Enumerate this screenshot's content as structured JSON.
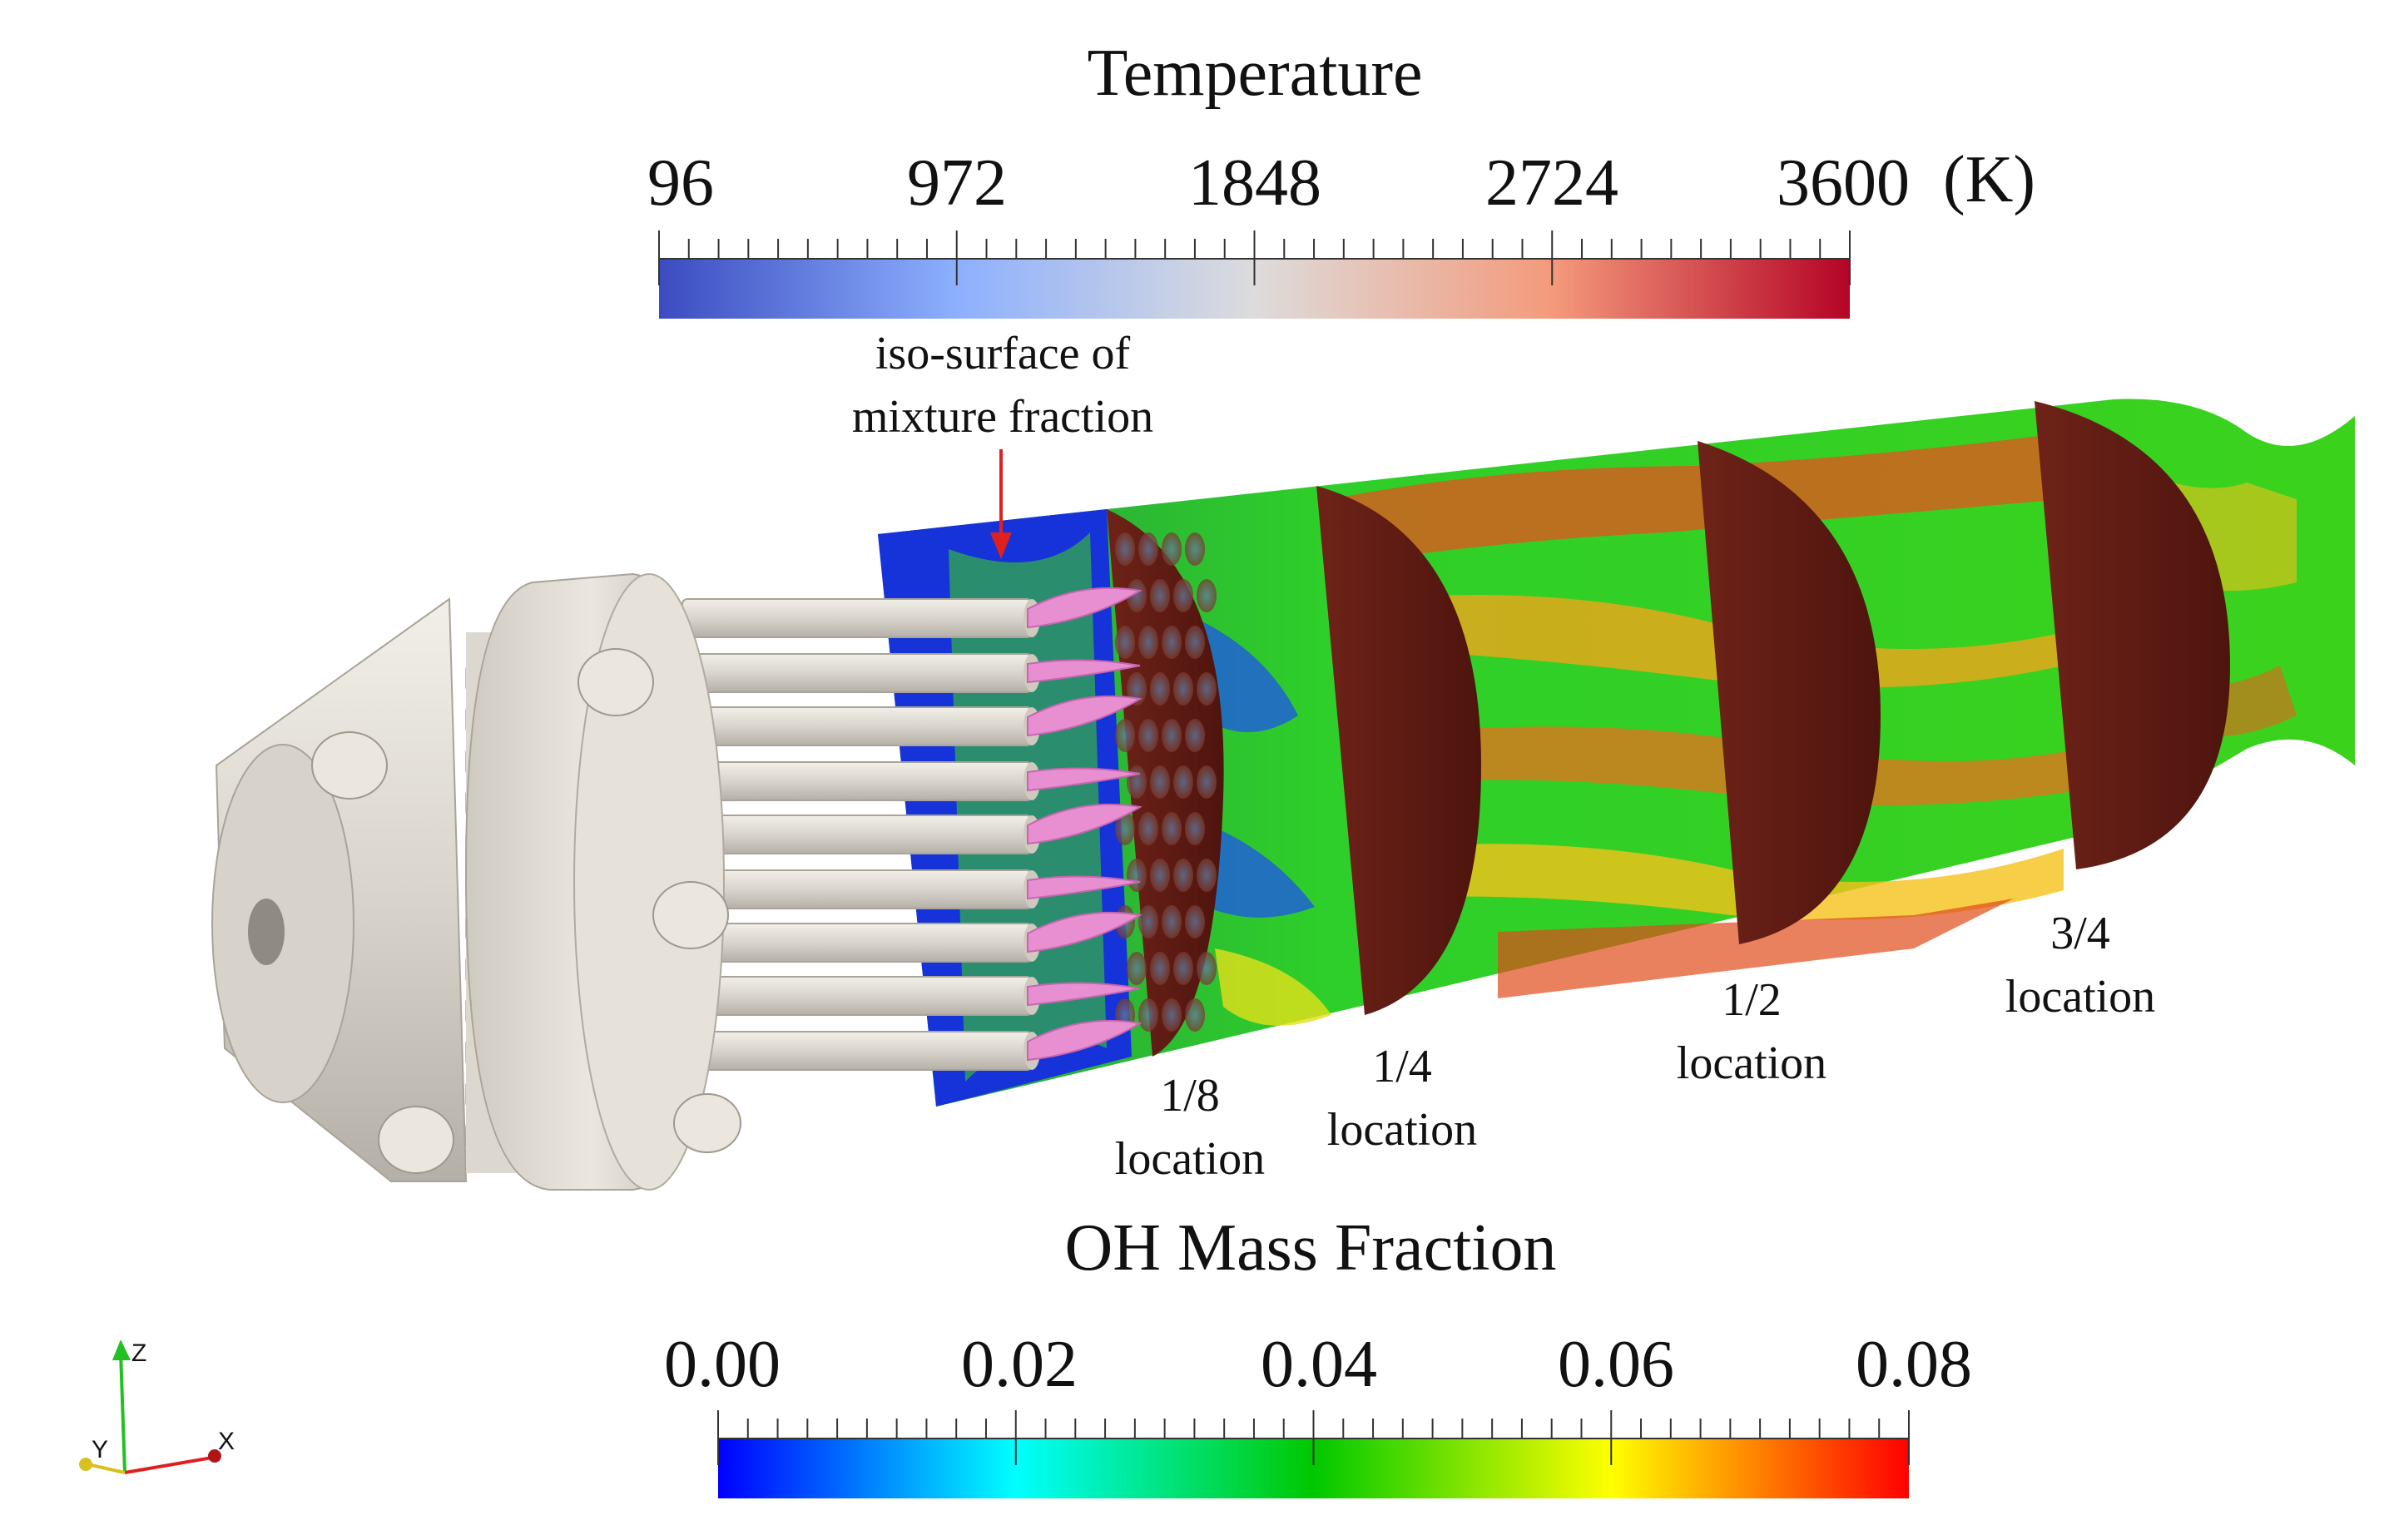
{
  "temperature_legend": {
    "title": "Temperature",
    "ticks": [
      "96",
      "972",
      "1848",
      "2724",
      "3600"
    ],
    "unit": "(K)",
    "colors": [
      "#3b4cc0",
      "#8db0fe",
      "#dddcdc",
      "#f49a7b",
      "#b40426"
    ]
  },
  "oh_legend": {
    "title": "OH Mass Fraction",
    "ticks": [
      "0.00",
      "0.02",
      "0.04",
      "0.06",
      "0.08"
    ],
    "colors": [
      "#0000ff",
      "#00ffff",
      "#00c800",
      "#ffff00",
      "#ff0000"
    ]
  },
  "annotations": {
    "isosurface_line1": "iso-surface of",
    "isosurface_line2": "mixture fraction",
    "loc_1_8_frac": "1/8",
    "loc_1_4_frac": "1/4",
    "loc_1_2_frac": "1/2",
    "loc_3_4_frac": "3/4",
    "location_word": "location"
  },
  "orientation_axes": {
    "z": "Z",
    "y": "Y",
    "x": "X"
  }
}
